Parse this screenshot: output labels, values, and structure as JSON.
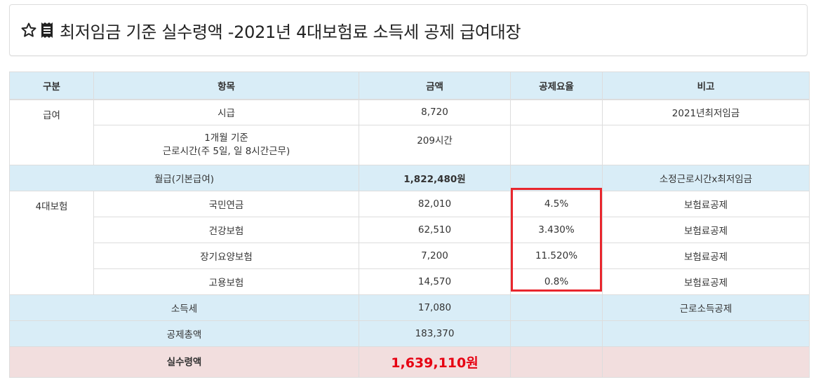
{
  "header": {
    "title": "최저임금 기준 실수령액 -2021년 4대보험료 소득세 공제 급여대장"
  },
  "table": {
    "headers": [
      "구분",
      "항목",
      "금액",
      "공제요율",
      "비고"
    ],
    "salary_group": "급여",
    "hourly": {
      "item": "시급",
      "amount": "8,720",
      "rate": "",
      "note": "2021년최저임금"
    },
    "hours": {
      "item_line1": "1개월 기준",
      "item_line2": "근로시간(주 5일, 일 8시간근무)",
      "amount": "209시간",
      "rate": "",
      "note": ""
    },
    "monthly": {
      "item": "월급(기본급여)",
      "amount": "1,822,480원",
      "rate": "",
      "note": "소정근로시간x최저임금"
    },
    "insurance_group": "4대보험",
    "insurance": [
      {
        "item": "국민연금",
        "amount": "82,010",
        "rate": "4.5%",
        "note": "보험료공제"
      },
      {
        "item": "건강보험",
        "amount": "62,510",
        "rate": "3.430%",
        "note": "보험료공제"
      },
      {
        "item": "장기요양보험",
        "amount": "7,200",
        "rate": "11.520%",
        "note": "보험료공제"
      },
      {
        "item": "고용보험",
        "amount": "14,570",
        "rate": "0.8%",
        "note": "보험료공제"
      }
    ],
    "income_tax": {
      "item": "소득세",
      "amount": "17,080",
      "rate": "",
      "note": "근로소득공제"
    },
    "total_deduction": {
      "item": "공제총액",
      "amount": "183,370",
      "rate": "",
      "note": ""
    },
    "net_pay": {
      "item": "실수령액",
      "amount": "1,639,110원",
      "rate": "",
      "note": ""
    }
  },
  "colors": {
    "header_bg": "#d9edf7",
    "net_row_bg": "#f2dede",
    "net_amount": "#e60012",
    "highlight_box": "#e8262d"
  },
  "icons": [
    "star-outline-icon",
    "receipt-icon"
  ]
}
